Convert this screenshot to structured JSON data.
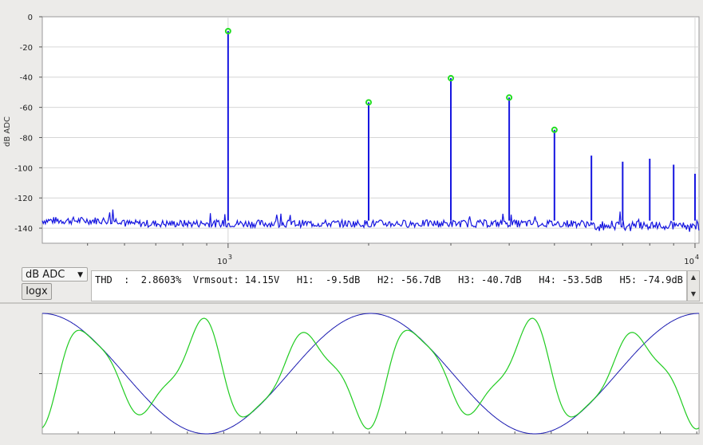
{
  "spectrum": {
    "y_axis_label": "dB ADC",
    "y_ticks": [
      "0",
      "-20",
      "-40",
      "-60",
      "-80",
      "-100",
      "-120",
      "-140"
    ],
    "x_tick_major": [
      {
        "base": "10",
        "exp": "3",
        "value": 1000
      },
      {
        "base": "10",
        "exp": "4",
        "value": 10000
      }
    ]
  },
  "chart_data": [
    {
      "type": "line",
      "title": "",
      "xlabel": "",
      "ylabel": "dB ADC",
      "xscale": "log",
      "xlim": [
        400,
        10200
      ],
      "ylim": [
        -150,
        0
      ],
      "grid": true,
      "noise_floor_db": -137,
      "series": [
        {
          "color": "#1515e0",
          "x": [
            1000,
            2000,
            3000,
            4000,
            5000,
            6000,
            7000,
            8000,
            9000,
            10000
          ],
          "y": [
            -9.5,
            -56.7,
            -40.7,
            -53.5,
            -74.9,
            -92,
            -96,
            -94,
            -98,
            -104
          ]
        }
      ],
      "markers": {
        "color": "#22dd22",
        "x": [
          1000,
          2000,
          3000,
          4000,
          5000
        ],
        "y": [
          -9.5,
          -56.7,
          -40.7,
          -53.5,
          -74.9
        ]
      }
    },
    {
      "type": "line",
      "title": "",
      "series": [
        {
          "color": "#1a1ab0",
          "kind": "cosine",
          "cycles": 2
        },
        {
          "color": "#22cc22",
          "kind": "distorted",
          "cycles": 6
        }
      ]
    }
  ],
  "controls": {
    "scale_combo": "dB ADC",
    "logx_button": "logx"
  },
  "thd_text": "THD  :  2.8603%  Vrmsout: 14.15V   H1:  -9.5dB   H2: -56.7dB   H3: -40.7dB   H4: -53.5dB   H5: -74.9dB",
  "icons": {
    "combo_arrow": "triangle-down",
    "scroll_up": "triangle-up",
    "scroll_down": "triangle-down"
  },
  "colors": {
    "plot_bg": "#ffffff",
    "grid": "#d6d6d6",
    "spectrum": "#1515e0",
    "marker": "#22dd22",
    "wave_blue": "#1a1ab0",
    "wave_green": "#22cc22"
  }
}
